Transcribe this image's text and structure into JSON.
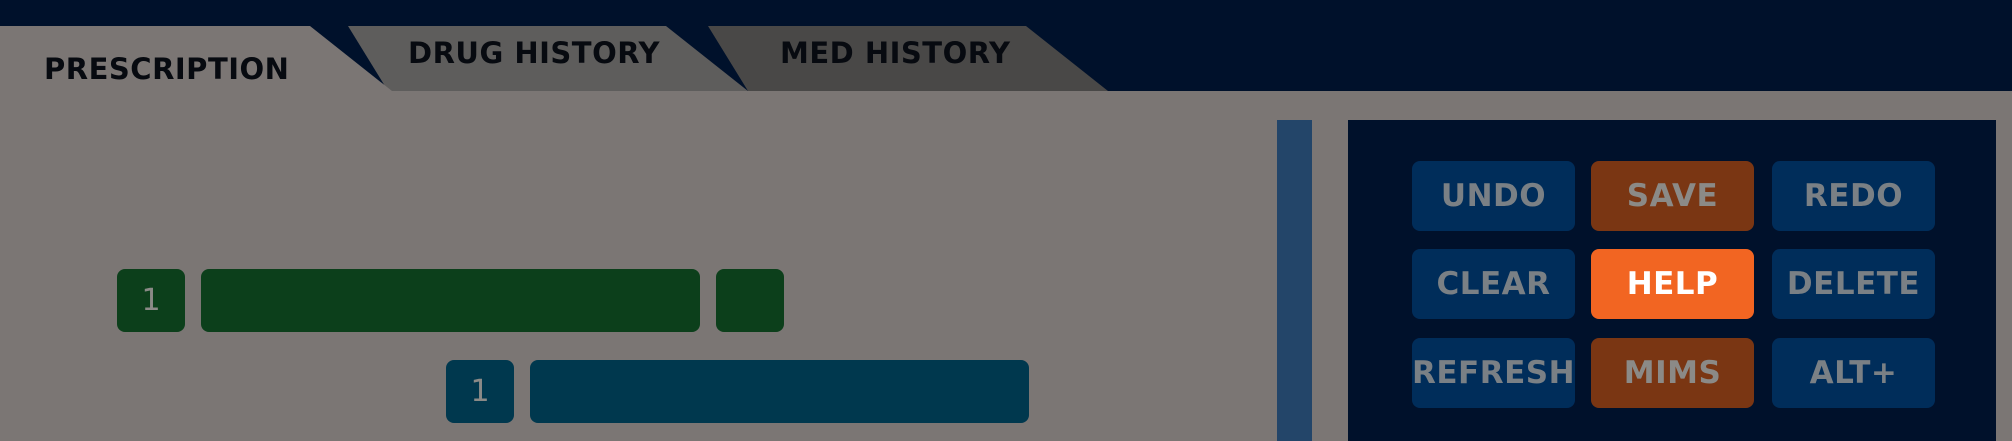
{
  "tabs": [
    {
      "label": "PRESCRIPTION",
      "active": true
    },
    {
      "label": "DRUG HISTORY",
      "active": false
    },
    {
      "label": "MED HISTORY",
      "active": false
    }
  ],
  "items": [
    {
      "number": "1",
      "color": "#0c3f1b"
    },
    {
      "number": "1",
      "color": "#00384e"
    }
  ],
  "buttons": {
    "undo": "UNDO",
    "save": "SAVE",
    "redo": "REDO",
    "clear": "CLEAR",
    "help": "HELP",
    "delete": "DELETE",
    "refresh": "REFRESH",
    "mims": "MIMS",
    "alt": "ALT+"
  },
  "colors": {
    "background": "#00112b",
    "content": "#7b7674",
    "active_tab": "#7b7674",
    "button_blue": "#002d5a",
    "button_brown": "#7a3613",
    "button_highlight": "#f26522"
  }
}
